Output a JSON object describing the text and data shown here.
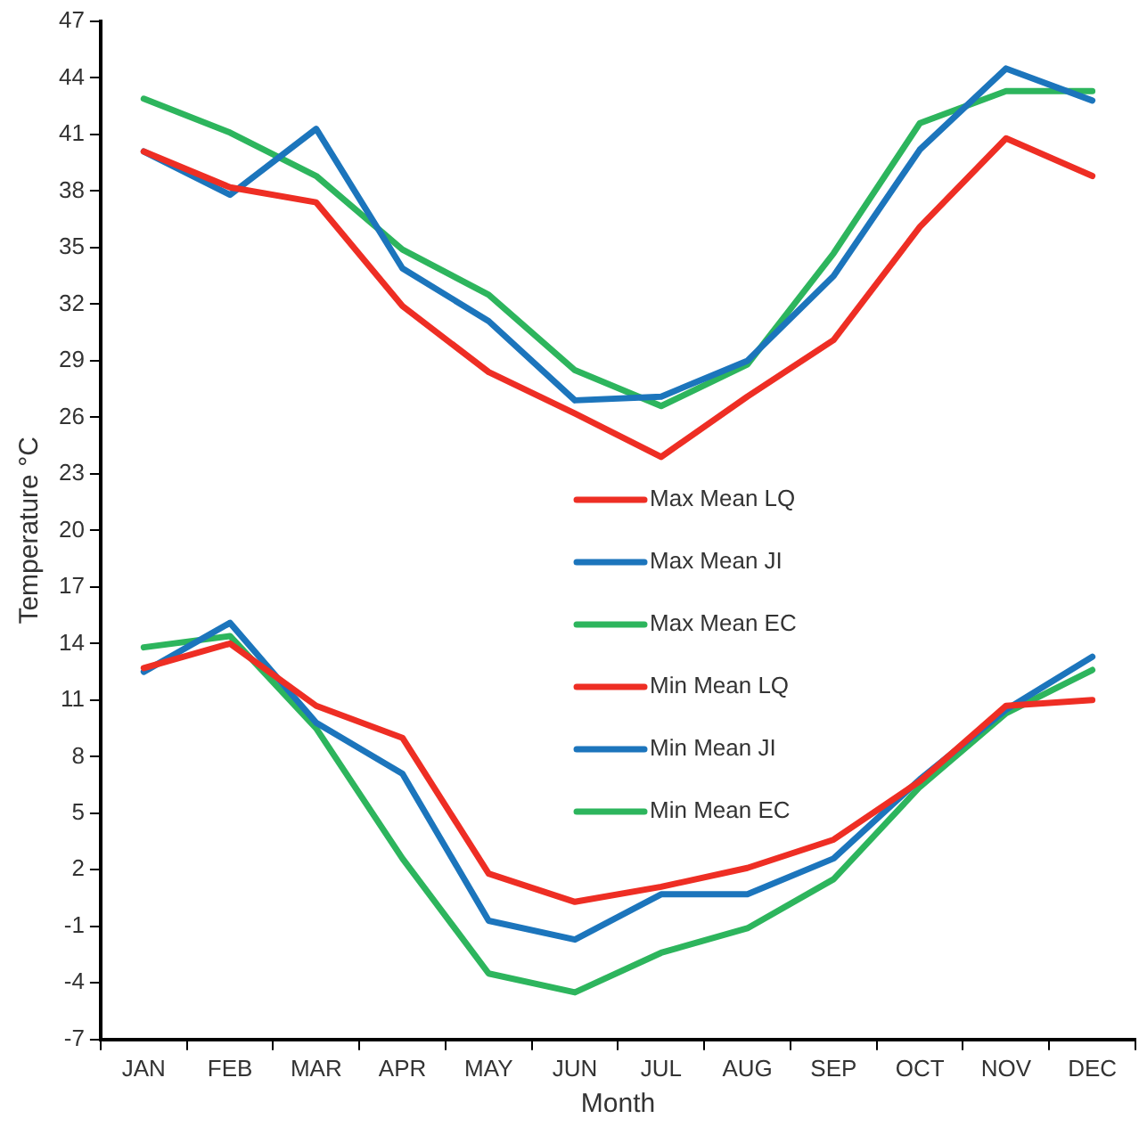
{
  "chart_data": {
    "type": "line",
    "xlabel": "Month",
    "ylabel": "Temperature °C",
    "categories": [
      "JAN",
      "FEB",
      "MAR",
      "APR",
      "MAY",
      "JUN",
      "JUL",
      "AUG",
      "SEP",
      "OCT",
      "NOV",
      "DEC"
    ],
    "series": [
      {
        "name": "Max Mean LQ",
        "color": "#ee2e24",
        "values": [
          40.1,
          38.2,
          37.4,
          31.9,
          28.4,
          26.2,
          23.9,
          27.1,
          30.1,
          36.1,
          40.8,
          38.8
        ]
      },
      {
        "name": "Max Mean JI",
        "color": "#1c75bc",
        "values": [
          40.1,
          37.8,
          41.3,
          33.9,
          31.1,
          26.9,
          27.1,
          29.0,
          33.5,
          40.2,
          44.5,
          42.8
        ]
      },
      {
        "name": "Max Mean EC",
        "color": "#2db55d",
        "values": [
          42.9,
          41.1,
          38.8,
          34.9,
          32.5,
          28.5,
          26.6,
          28.8,
          34.7,
          41.6,
          43.3,
          43.3
        ]
      },
      {
        "name": "Min Mean LQ",
        "color": "#ee2e24",
        "values": [
          12.7,
          14.0,
          10.7,
          9.0,
          1.8,
          0.3,
          1.1,
          2.1,
          3.6,
          6.7,
          10.7,
          11.0
        ]
      },
      {
        "name": "Min Mean JI",
        "color": "#1c75bc",
        "values": [
          12.5,
          15.1,
          9.8,
          7.1,
          -0.7,
          -1.7,
          0.7,
          0.7,
          2.6,
          6.8,
          10.5,
          13.3
        ]
      },
      {
        "name": "Min Mean EC",
        "color": "#2db55d",
        "values": [
          13.8,
          14.4,
          9.5,
          2.6,
          -3.5,
          -4.5,
          -2.4,
          -1.1,
          1.5,
          6.4,
          10.3,
          12.6
        ]
      }
    ],
    "ylim": [
      -7,
      47
    ],
    "yticks": [
      -7,
      -4,
      -1,
      2,
      5,
      8,
      11,
      14,
      17,
      20,
      23,
      26,
      29,
      32,
      35,
      38,
      41,
      44,
      47
    ],
    "grid": false,
    "legend": "center",
    "marker": "none",
    "line_style": "solid"
  }
}
